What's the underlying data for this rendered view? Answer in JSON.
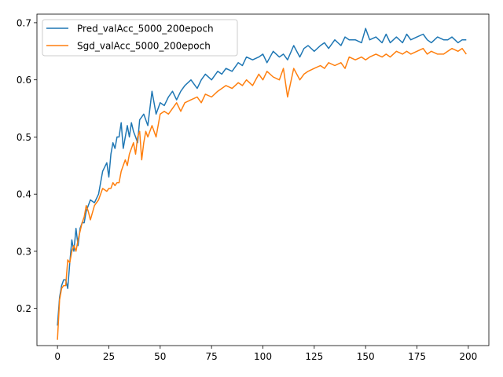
{
  "chart_data": {
    "type": "line",
    "title": "",
    "xlabel": "",
    "ylabel": "",
    "xlim": [
      -10,
      210
    ],
    "ylim": [
      0.135,
      0.715
    ],
    "xticks": [
      0,
      25,
      50,
      75,
      100,
      125,
      150,
      175,
      200
    ],
    "yticks": [
      0.2,
      0.3,
      0.4,
      0.5,
      0.6,
      0.7
    ],
    "grid": false,
    "legend": "top-left",
    "series": [
      {
        "name": "Pred_valAcc_5000_200epoch",
        "color": "#1f77b4",
        "x": [
          0,
          1,
          2,
          3,
          4,
          5,
          6,
          7,
          8,
          9,
          10,
          11,
          12,
          13,
          14,
          15,
          16,
          18,
          20,
          22,
          24,
          25,
          26,
          27,
          28,
          29,
          30,
          31,
          32,
          33,
          34,
          35,
          36,
          37,
          38,
          39,
          40,
          42,
          44,
          46,
          48,
          50,
          52,
          54,
          56,
          58,
          60,
          62,
          65,
          68,
          70,
          72,
          75,
          78,
          80,
          82,
          85,
          88,
          90,
          92,
          95,
          98,
          100,
          102,
          105,
          108,
          110,
          112,
          115,
          118,
          120,
          122,
          125,
          128,
          130,
          132,
          135,
          138,
          140,
          142,
          145,
          148,
          150,
          152,
          155,
          158,
          160,
          162,
          165,
          168,
          170,
          172,
          175,
          178,
          180,
          182,
          185,
          188,
          190,
          192,
          195,
          197,
          199
        ],
        "values": [
          0.17,
          0.22,
          0.24,
          0.25,
          0.25,
          0.235,
          0.28,
          0.32,
          0.3,
          0.34,
          0.31,
          0.34,
          0.35,
          0.35,
          0.37,
          0.38,
          0.39,
          0.385,
          0.4,
          0.44,
          0.455,
          0.43,
          0.47,
          0.49,
          0.48,
          0.5,
          0.5,
          0.525,
          0.48,
          0.5,
          0.52,
          0.5,
          0.525,
          0.51,
          0.5,
          0.49,
          0.53,
          0.54,
          0.52,
          0.58,
          0.54,
          0.56,
          0.555,
          0.57,
          0.58,
          0.565,
          0.58,
          0.59,
          0.6,
          0.585,
          0.6,
          0.61,
          0.6,
          0.615,
          0.61,
          0.62,
          0.615,
          0.63,
          0.625,
          0.64,
          0.635,
          0.64,
          0.645,
          0.63,
          0.65,
          0.64,
          0.645,
          0.635,
          0.66,
          0.64,
          0.655,
          0.66,
          0.65,
          0.66,
          0.665,
          0.655,
          0.67,
          0.66,
          0.675,
          0.67,
          0.67,
          0.665,
          0.69,
          0.67,
          0.675,
          0.665,
          0.68,
          0.665,
          0.675,
          0.665,
          0.68,
          0.67,
          0.675,
          0.68,
          0.67,
          0.665,
          0.675,
          0.67,
          0.67,
          0.675,
          0.665,
          0.67,
          0.67
        ]
      },
      {
        "name": "Sgd_valAcc_5000_200epoch",
        "color": "#ff7f0e",
        "x": [
          0,
          1,
          2,
          3,
          4,
          5,
          6,
          7,
          8,
          9,
          10,
          11,
          12,
          13,
          14,
          15,
          16,
          18,
          20,
          22,
          24,
          25,
          26,
          27,
          28,
          29,
          30,
          31,
          32,
          33,
          34,
          35,
          36,
          37,
          38,
          39,
          40,
          41,
          42,
          43,
          44,
          46,
          48,
          50,
          52,
          54,
          56,
          58,
          60,
          62,
          65,
          68,
          70,
          72,
          75,
          78,
          80,
          82,
          85,
          88,
          90,
          92,
          95,
          98,
          100,
          102,
          105,
          108,
          110,
          112,
          115,
          118,
          120,
          122,
          125,
          128,
          130,
          132,
          135,
          138,
          140,
          142,
          145,
          148,
          150,
          152,
          155,
          158,
          160,
          162,
          165,
          168,
          170,
          172,
          175,
          178,
          180,
          182,
          185,
          188,
          190,
          192,
          195,
          197,
          199
        ],
        "values": [
          0.145,
          0.215,
          0.235,
          0.24,
          0.24,
          0.285,
          0.28,
          0.3,
          0.31,
          0.3,
          0.32,
          0.335,
          0.35,
          0.36,
          0.38,
          0.37,
          0.355,
          0.38,
          0.39,
          0.41,
          0.405,
          0.41,
          0.41,
          0.42,
          0.415,
          0.42,
          0.42,
          0.44,
          0.45,
          0.46,
          0.45,
          0.47,
          0.48,
          0.49,
          0.47,
          0.5,
          0.51,
          0.46,
          0.49,
          0.51,
          0.5,
          0.52,
          0.5,
          0.54,
          0.545,
          0.54,
          0.55,
          0.56,
          0.545,
          0.56,
          0.565,
          0.57,
          0.56,
          0.575,
          0.57,
          0.58,
          0.585,
          0.59,
          0.585,
          0.595,
          0.59,
          0.6,
          0.59,
          0.61,
          0.6,
          0.615,
          0.605,
          0.6,
          0.62,
          0.57,
          0.62,
          0.6,
          0.61,
          0.615,
          0.62,
          0.625,
          0.62,
          0.63,
          0.625,
          0.63,
          0.62,
          0.64,
          0.635,
          0.64,
          0.635,
          0.64,
          0.645,
          0.64,
          0.645,
          0.64,
          0.65,
          0.645,
          0.65,
          0.645,
          0.65,
          0.655,
          0.645,
          0.65,
          0.645,
          0.645,
          0.65,
          0.655,
          0.65,
          0.655,
          0.645
        ]
      }
    ]
  }
}
